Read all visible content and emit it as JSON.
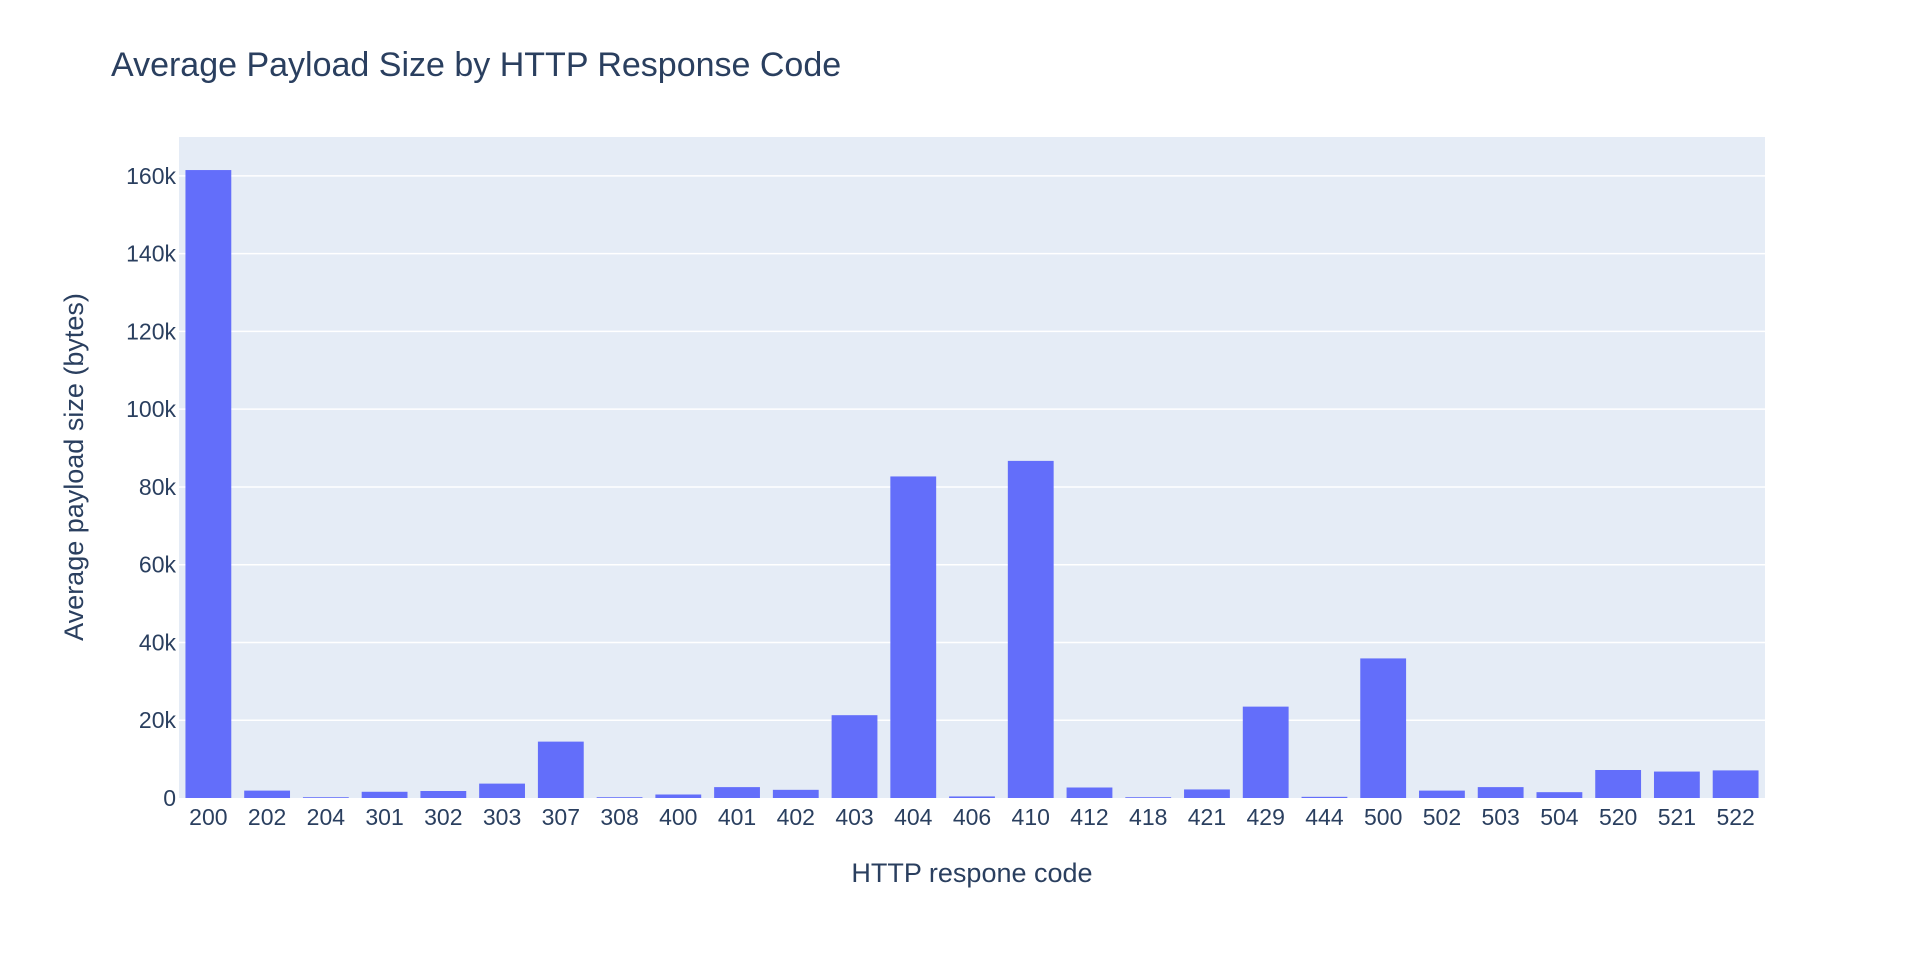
{
  "colors": {
    "bar": "#636EFA",
    "plot_bg": "#E5ECF6",
    "grid": "#FFFFFF",
    "text": "#2A3F5F"
  },
  "chart_data": {
    "type": "bar",
    "title": "Average Payload Size by HTTP Response Code",
    "xlabel": "HTTP respone code",
    "ylabel": "Average payload size (bytes)",
    "ylim": [
      0,
      170000
    ],
    "yticks": [
      0,
      20000,
      40000,
      60000,
      80000,
      100000,
      120000,
      140000,
      160000
    ],
    "ytick_labels": [
      "0",
      "20k",
      "40k",
      "60k",
      "80k",
      "100k",
      "120k",
      "140k",
      "160k"
    ],
    "grid": true,
    "categories": [
      "200",
      "202",
      "204",
      "301",
      "302",
      "303",
      "307",
      "308",
      "400",
      "401",
      "402",
      "403",
      "404",
      "406",
      "410",
      "412",
      "418",
      "421",
      "429",
      "444",
      "500",
      "502",
      "503",
      "504",
      "520",
      "521",
      "522"
    ],
    "values": [
      161500,
      1900,
      200,
      1600,
      1800,
      3700,
      14500,
      200,
      900,
      2800,
      2100,
      21300,
      82700,
      400,
      86700,
      2700,
      200,
      2200,
      23500,
      300,
      35900,
      1900,
      2800,
      1500,
      7200,
      6800,
      7100
    ]
  }
}
